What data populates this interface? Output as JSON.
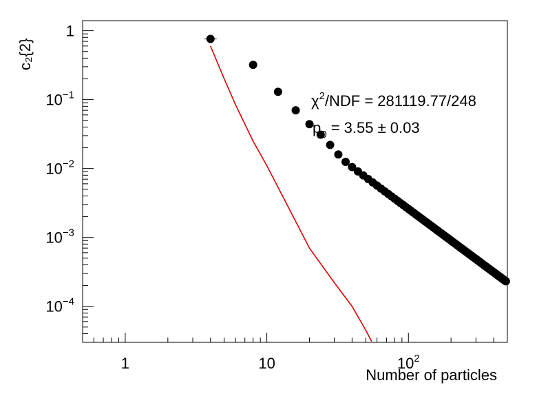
{
  "chart_data": {
    "type": "scatter",
    "title": "",
    "xlabel": "Number of particles",
    "ylabel": "c₂{2}",
    "x_scale": "log",
    "y_scale": "log",
    "xlim": [
      0.5,
      500
    ],
    "ylim": [
      3e-05,
      1.4
    ],
    "grid": false,
    "x_ticks": [
      {
        "value": 1,
        "base": "1",
        "exp": ""
      },
      {
        "value": 10,
        "base": "10",
        "exp": ""
      },
      {
        "value": 100,
        "base": "10",
        "exp": "2"
      }
    ],
    "y_ticks": [
      {
        "value": 1,
        "base": "1",
        "exp": ""
      },
      {
        "value": 0.1,
        "base": "10",
        "exp": "−1"
      },
      {
        "value": 0.01,
        "base": "10",
        "exp": "−2"
      },
      {
        "value": 0.001,
        "base": "10",
        "exp": "−3"
      },
      {
        "value": 0.0001,
        "base": "10",
        "exp": "−4"
      }
    ],
    "series": [
      {
        "kind": "markers",
        "color": "#000000",
        "x_start": 4,
        "x_step": 4,
        "x_end": 488,
        "power_law_exponent": 3.55,
        "values_head": [
          0.76,
          0.32,
          0.13,
          0.07,
          0.044,
          0.031,
          0.022,
          0.016,
          0.0125,
          0.0105
        ]
      },
      {
        "kind": "line",
        "color": "#dd0000",
        "x": [
          4,
          5,
          6,
          8,
          10,
          15,
          20,
          30,
          40,
          50,
          55
        ],
        "values": [
          0.6,
          0.2,
          0.085,
          0.025,
          0.011,
          0.0022,
          0.0007,
          0.00022,
          0.0001,
          4.5e-05,
          3.1e-05
        ]
      }
    ],
    "annotations": {
      "chi2_prefix": "χ",
      "chi2_sup": "2",
      "chi2_text": "/NDF = 281119.77/248",
      "p0_symbol": "p",
      "p0_sub": "0",
      "p0_text": " = 3.55 ± 0.03"
    }
  }
}
